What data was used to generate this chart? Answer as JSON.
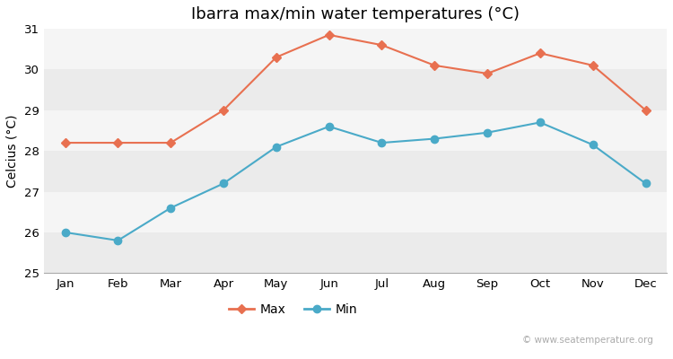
{
  "months": [
    "Jan",
    "Feb",
    "Mar",
    "Apr",
    "May",
    "Jun",
    "Jul",
    "Aug",
    "Sep",
    "Oct",
    "Nov",
    "Dec"
  ],
  "max_temps": [
    28.2,
    28.2,
    28.2,
    29.0,
    30.3,
    30.85,
    30.6,
    30.1,
    29.9,
    30.4,
    30.1,
    29.0
  ],
  "min_temps": [
    26.0,
    25.8,
    26.6,
    27.2,
    28.1,
    28.6,
    28.2,
    28.3,
    28.45,
    28.7,
    28.15,
    27.2
  ],
  "max_color": "#e87050",
  "min_color": "#4aaac8",
  "fig_bg_color": "#ffffff",
  "band_colors": [
    "#ebebeb",
    "#f5f5f5"
  ],
  "title": "Ibarra max/min water temperatures (°C)",
  "ylabel": "Celcius (°C)",
  "ylim": [
    25,
    31
  ],
  "yticks": [
    25,
    26,
    27,
    28,
    29,
    30,
    31
  ],
  "watermark": "© www.seatemperature.org",
  "title_fontsize": 13,
  "label_fontsize": 10,
  "tick_fontsize": 9.5,
  "watermark_fontsize": 7.5
}
